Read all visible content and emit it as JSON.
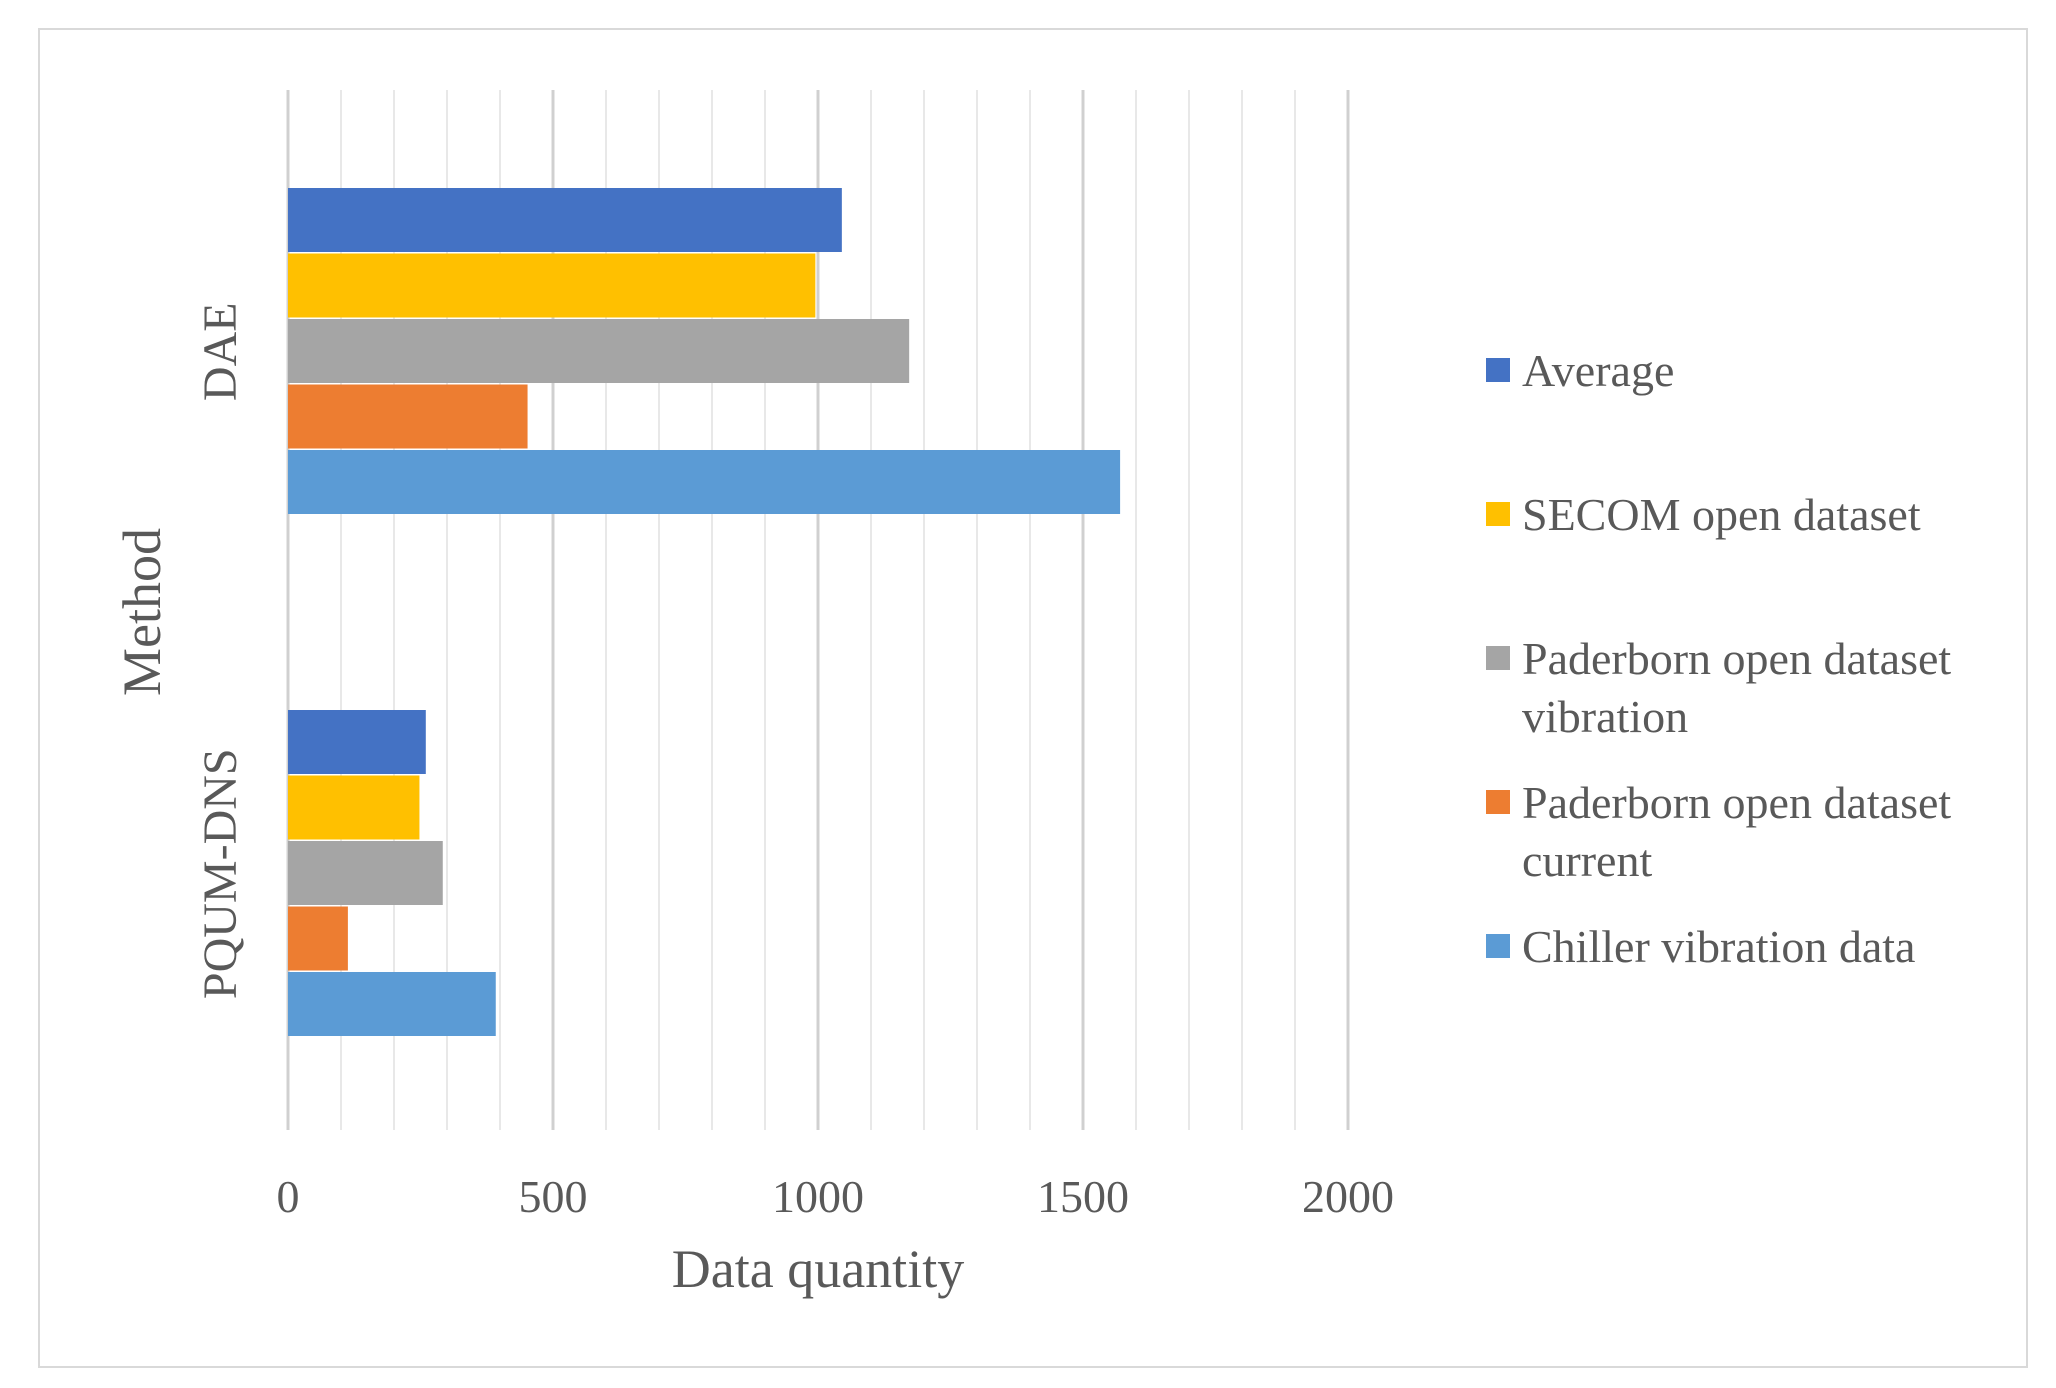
{
  "chart_data": {
    "type": "bar",
    "orientation": "horizontal",
    "title": "",
    "xlabel": "Data quantity",
    "ylabel": "Method",
    "xlim": [
      0,
      2000
    ],
    "x_ticks": [
      "0",
      "500",
      "1000",
      "1500",
      "2000"
    ],
    "x_tick_values": [
      0,
      500,
      1000,
      1500,
      2000
    ],
    "categories": [
      "DAE",
      "PQUM-DNS"
    ],
    "series": [
      {
        "name": "Average",
        "color": "#4472C4",
        "values": [
          1045,
          260
        ]
      },
      {
        "name": "SECOM open dataset",
        "color": "#FFC000",
        "values": [
          995,
          248
        ]
      },
      {
        "name": "Paderborn open dataset vibration",
        "color": "#A5A5A5",
        "values": [
          1172,
          292
        ]
      },
      {
        "name": "Paderborn open dataset current",
        "color": "#ED7D31",
        "values": [
          452,
          113
        ]
      },
      {
        "name": "Chiller vibration data",
        "color": "#5B9BD5",
        "values": [
          1570,
          392
        ]
      }
    ],
    "legend": {
      "position": "right",
      "entries": [
        {
          "lines": [
            "Average"
          ],
          "color": "#4472C4"
        },
        {
          "lines": [
            "SECOM open dataset"
          ],
          "color": "#FFC000"
        },
        {
          "lines": [
            "Paderborn open dataset",
            "vibration"
          ],
          "color": "#A5A5A5"
        },
        {
          "lines": [
            "Paderborn open dataset",
            "current"
          ],
          "color": "#ED7D31"
        },
        {
          "lines": [
            "Chiller vibration data"
          ],
          "color": "#5B9BD5"
        }
      ]
    },
    "grid": true,
    "minor_grid": true
  }
}
